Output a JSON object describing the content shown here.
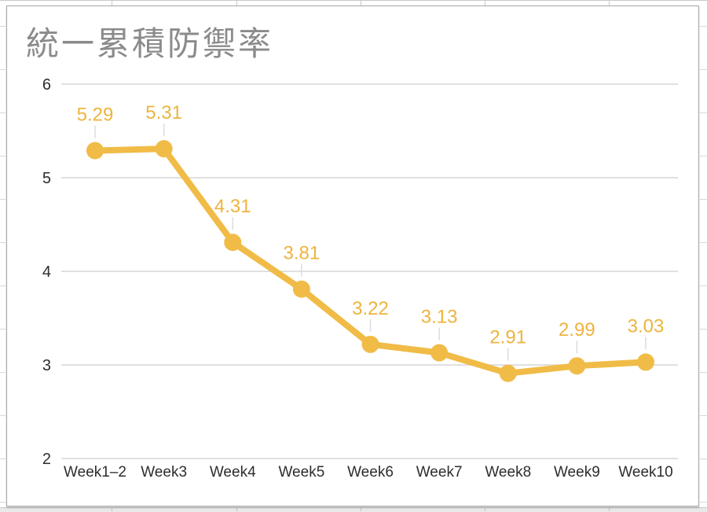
{
  "chart_data": {
    "type": "line",
    "title": "統一累積防禦率",
    "categories": [
      "Week1–2",
      "Week3",
      "Week4",
      "Week5",
      "Week6",
      "Week7",
      "Week8",
      "Week9",
      "Week10"
    ],
    "values": [
      5.29,
      5.31,
      4.31,
      3.81,
      3.22,
      3.13,
      2.91,
      2.99,
      3.03
    ],
    "point_labels": [
      "5.29",
      "5.31",
      "4.31",
      "3.81",
      "3.22",
      "3.13",
      "2.91",
      "2.99",
      "3.03"
    ],
    "xlabel": "",
    "ylabel": "",
    "ylim": [
      2,
      6
    ],
    "yticks": [
      6,
      5,
      4,
      3,
      2
    ],
    "grid": true,
    "legend_position": "none",
    "colors": {
      "line": "#F0BC47",
      "marker": "#F0BC47",
      "value_label": "#EDB43D",
      "title": "#8B8B8B",
      "gridline": "#D6D6D6",
      "axis_label": "#2D2D2D",
      "leader_line": "#DCDCDC"
    }
  }
}
